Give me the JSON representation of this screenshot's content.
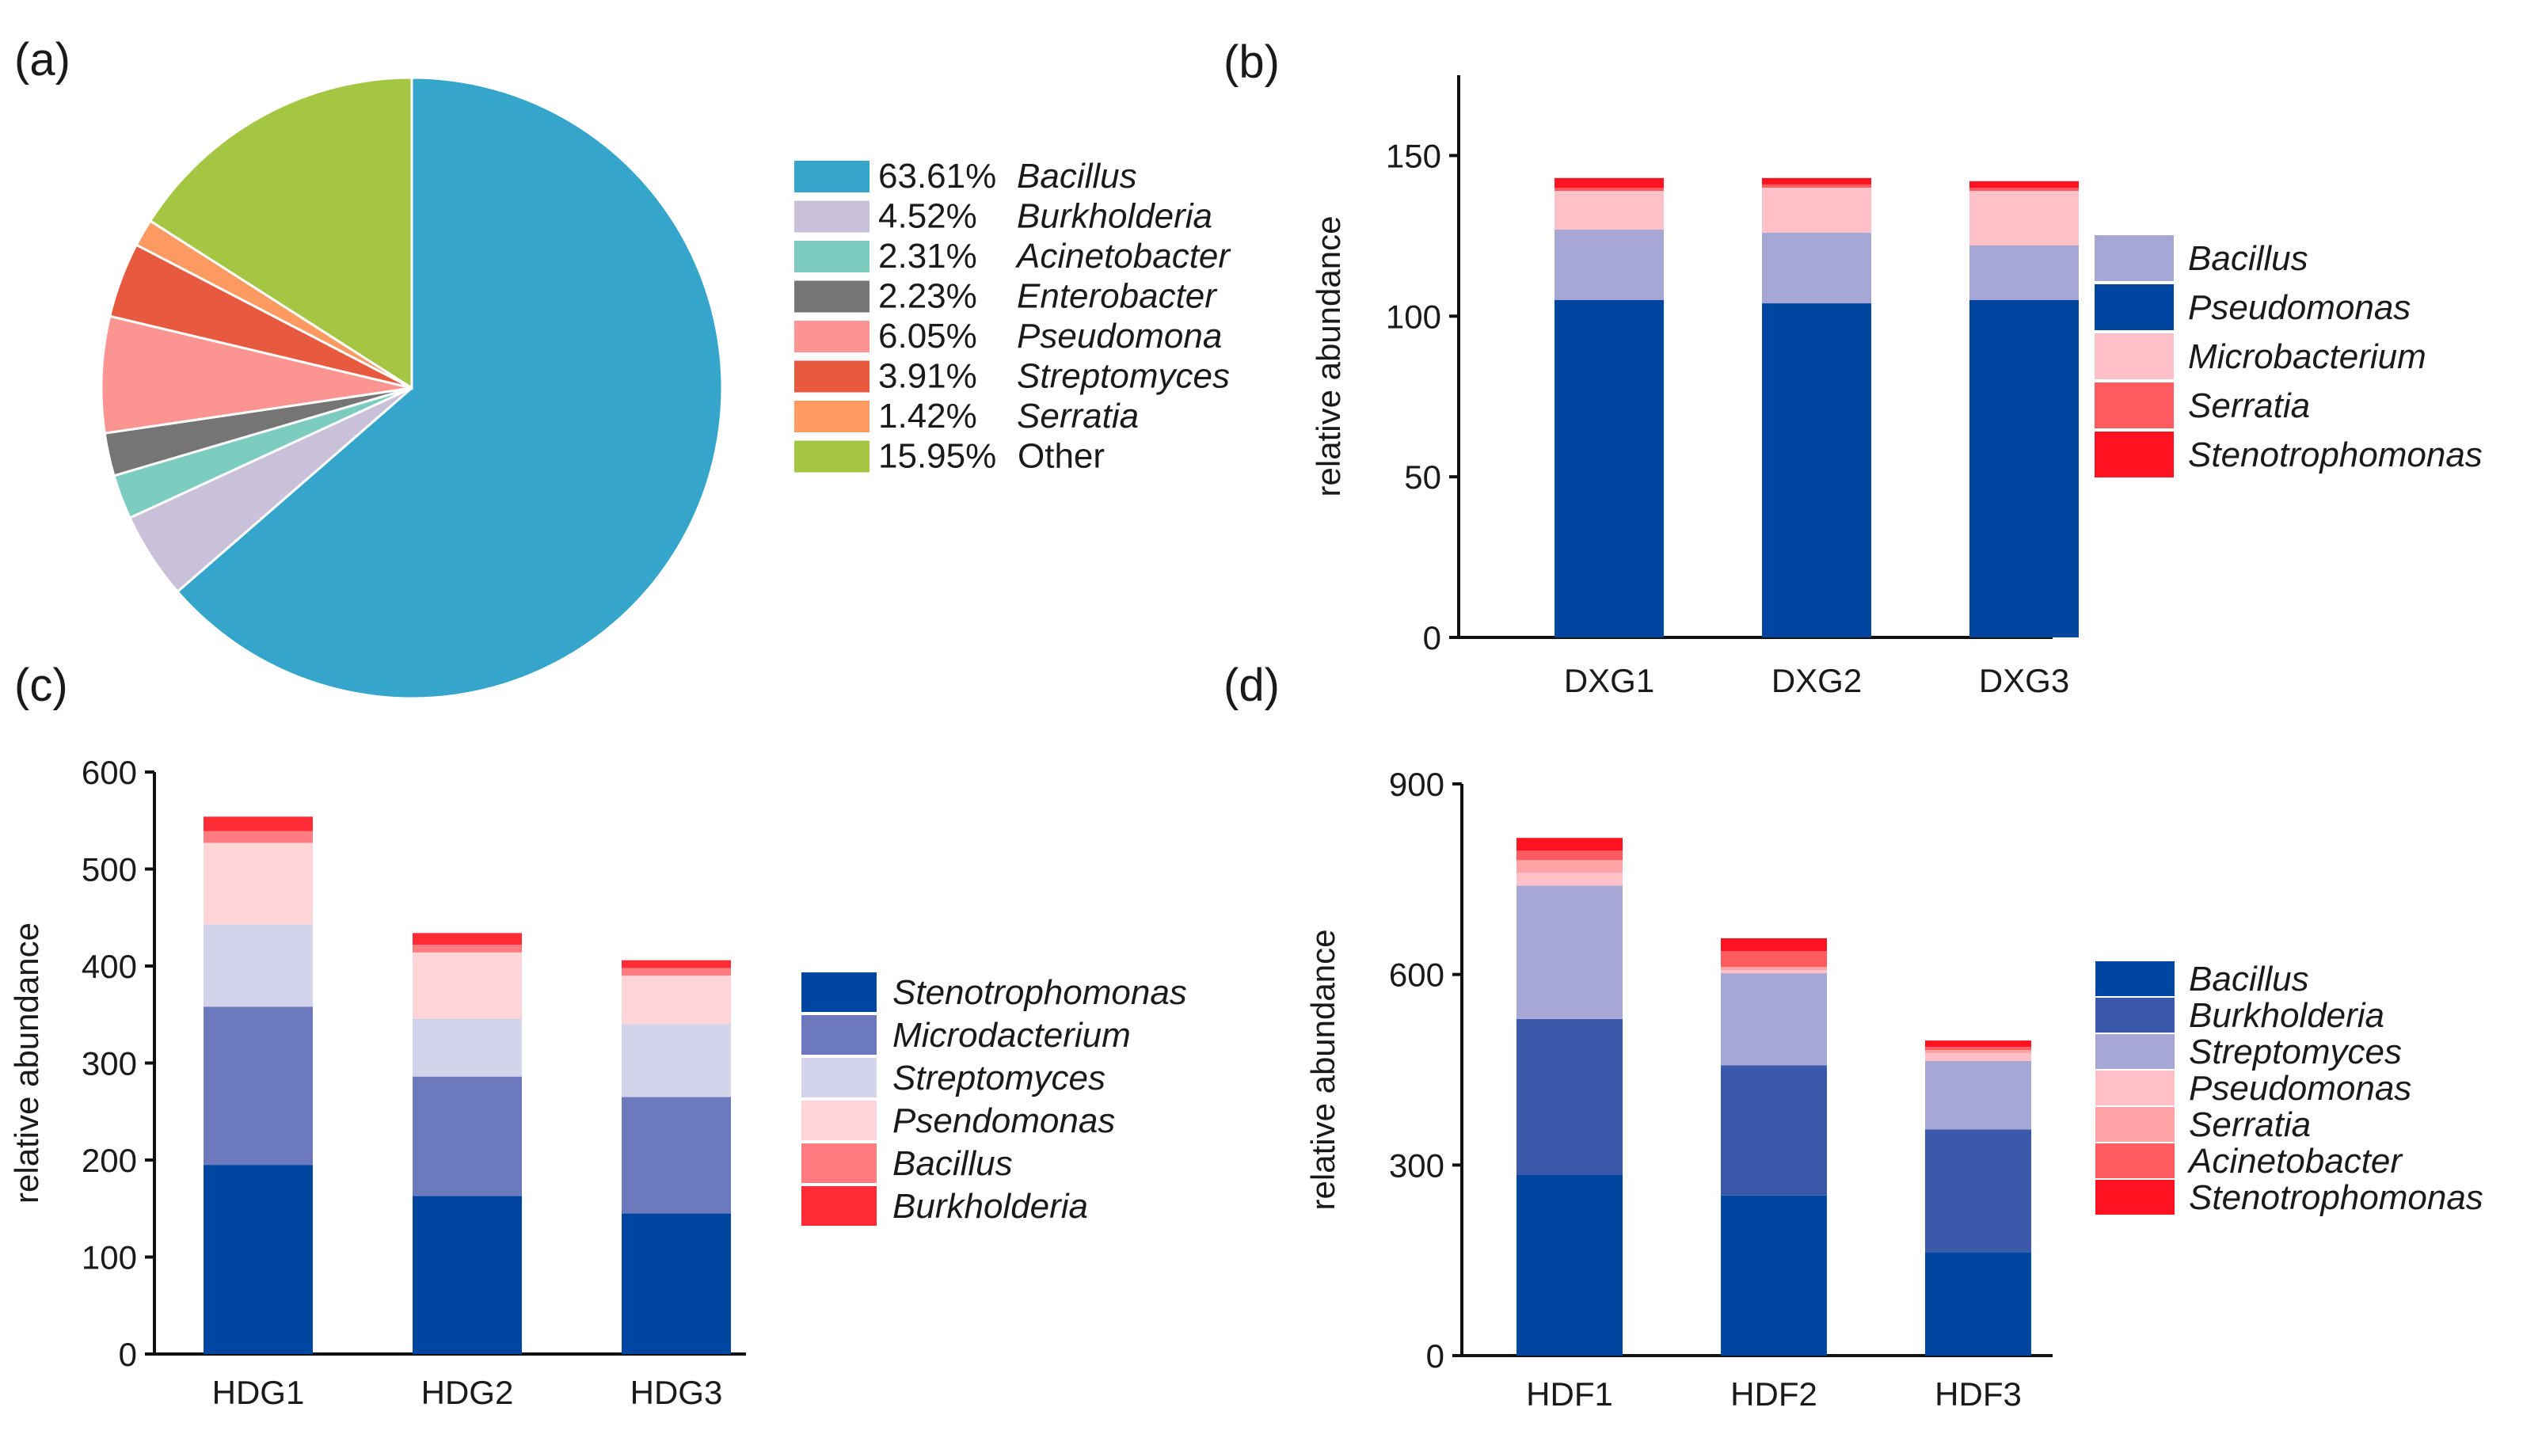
{
  "chart_data": [
    {
      "panel": "(a)",
      "type": "pie",
      "slices": [
        {
          "pct": "63.61%",
          "value": 63.61,
          "name": "Bacillus",
          "italic": true,
          "color": "#35a5cc"
        },
        {
          "pct": "4.52%",
          "value": 4.52,
          "name": "Burkholderia",
          "italic": true,
          "color": "#c9c0d9"
        },
        {
          "pct": "2.31%",
          "value": 2.31,
          "name": "Acinetobacter",
          "italic": true,
          "color": "#7ccdc0"
        },
        {
          "pct": "2.23%",
          "value": 2.23,
          "name": "Enterobacter",
          "italic": true,
          "color": "#767576"
        },
        {
          "pct": "6.05%",
          "value": 6.05,
          "name": "Pseudomona",
          "italic": true,
          "color": "#fc9592"
        },
        {
          "pct": "3.91%",
          "value": 3.91,
          "name": "Streptomyces",
          "italic": true,
          "color": "#e85a3f"
        },
        {
          "pct": "1.42%",
          "value": 1.42,
          "name": "Serratia",
          "italic": true,
          "color": "#fd9a62"
        },
        {
          "pct": "15.95%",
          "value": 15.95,
          "name": "Other",
          "italic": false,
          "color": "#a5c643"
        }
      ]
    },
    {
      "panel": "(b)",
      "type": "bar",
      "stacked": true,
      "ylabel": "relative abundance",
      "ylim": [
        0,
        175
      ],
      "yticks": [
        0,
        50,
        100,
        150
      ],
      "categories": [
        "DXG1",
        "DXG2",
        "DXG3"
      ],
      "series": [
        {
          "name": "Pseudomonas",
          "color": "#0046a0",
          "values": [
            105,
            104,
            105
          ]
        },
        {
          "name": "Bacillus",
          "color": "#a7a7d6",
          "values": [
            22,
            22,
            17
          ]
        },
        {
          "name": "Microbacterium",
          "color": "#ffc1c7",
          "values": [
            12,
            14,
            17
          ]
        },
        {
          "name": "Serratia",
          "color": "#ff5a5f",
          "values": [
            1,
            1,
            1
          ]
        },
        {
          "name": "Stenotrophomonas",
          "color": "#ff1321",
          "values": [
            3,
            2,
            2
          ]
        }
      ],
      "legend_order": [
        "Bacillus",
        "Pseudomonas",
        "Microbacterium",
        "Serratia",
        "Stenotrophomonas"
      ]
    },
    {
      "panel": "(c)",
      "type": "bar",
      "stacked": true,
      "ylabel": "relative abundance",
      "ylim": [
        0,
        600
      ],
      "yticks": [
        0,
        100,
        200,
        300,
        400,
        500,
        600
      ],
      "categories": [
        "HDG1",
        "HDG2",
        "HDG3"
      ],
      "series": [
        {
          "name": "Stenotrophomonas",
          "color": "#0046a0",
          "values": [
            195,
            163,
            145
          ]
        },
        {
          "name": "Microdacterium",
          "color": "#6c79bd",
          "values": [
            163,
            123,
            120
          ]
        },
        {
          "name": "Streptomyces",
          "color": "#d3d3ec",
          "values": [
            85,
            60,
            75
          ]
        },
        {
          "name": "Psendomonas",
          "color": "#ffd5d8",
          "values": [
            84,
            68,
            50
          ]
        },
        {
          "name": "Bacillus",
          "color": "#ff7b7f",
          "values": [
            12,
            8,
            8
          ]
        },
        {
          "name": "Burkholderia",
          "color": "#ff2c35",
          "values": [
            15,
            12,
            8
          ]
        }
      ],
      "legend_order": [
        "Stenotrophomonas",
        "Microdacterium",
        "Streptomyces",
        "Psendomonas",
        "Bacillus",
        "Burkholderia"
      ]
    },
    {
      "panel": "(d)",
      "type": "bar",
      "stacked": true,
      "ylabel": "relative abundance",
      "ylim": [
        0,
        900
      ],
      "yticks": [
        0,
        300,
        600,
        900
      ],
      "categories": [
        "HDF1",
        "HDF2",
        "HDF3"
      ],
      "series": [
        {
          "name": "Bacillus",
          "color": "#0046a0",
          "values": [
            285,
            252,
            163
          ]
        },
        {
          "name": "Burkholderia",
          "color": "#3b58aa",
          "values": [
            245,
            205,
            193
          ]
        },
        {
          "name": "Streptomyces",
          "color": "#a7a7d6",
          "values": [
            210,
            145,
            108
          ]
        },
        {
          "name": "Pseudomonas",
          "color": "#ffc1c7",
          "values": [
            20,
            5,
            12
          ]
        },
        {
          "name": "Serratia",
          "color": "#ffa3a6",
          "values": [
            20,
            5,
            5
          ]
        },
        {
          "name": "Acinetobacter",
          "color": "#ff5a5f",
          "values": [
            15,
            25,
            5
          ]
        },
        {
          "name": "Stenotrophomonas",
          "color": "#ff1321",
          "values": [
            20,
            20,
            10
          ]
        }
      ],
      "legend_order": [
        "Bacillus",
        "Burkholderia",
        "Streptomyces",
        "Pseudomonas",
        "Serratia",
        "Acinetobacter",
        "Stenotrophomonas"
      ]
    }
  ]
}
